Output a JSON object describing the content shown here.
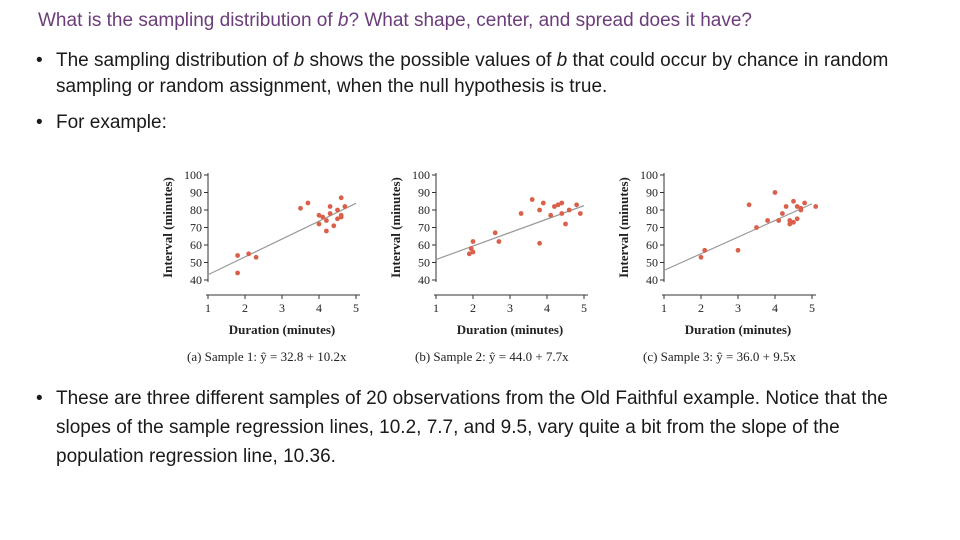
{
  "slide": {
    "title_pre": "What is the sampling distribution of ",
    "title_var": "b",
    "title_post": "?  What shape, center, and spread does it have?",
    "bullet_glyph": "•",
    "bullet1_pre": "The sampling distribution of ",
    "bullet1_var1": "b",
    "bullet1_mid": " shows the possible values of ",
    "bullet1_var2": "b",
    "bullet1_post": " that could occur by chance in random sampling or random assignment, when the null hypothesis is true.",
    "bullet2": "For example:",
    "bullet3": "These are three different samples of 20 observations from the Old Faithful example. Notice that the slopes of the sample regression lines, 10.2, 7.7, and 9.5, vary quite a bit from the slope of the population regression line, 10.36."
  },
  "colors": {
    "title": "#6b3d7a",
    "points": "#d9604a",
    "line": "#9a9a9a"
  },
  "chart_data": [
    {
      "type": "scatter",
      "xlabel": "Duration (minutes)",
      "ylabel": "Interval (minutes)",
      "xlim": [
        1,
        5
      ],
      "ylim": [
        40,
        100
      ],
      "xticks": [
        "1",
        "2",
        "3",
        "4",
        "5"
      ],
      "yticks": [
        "100",
        "90",
        "80",
        "70",
        "60",
        "50",
        "40"
      ],
      "caption": "(a) Sample 1:  ŷ = 32.8 + 10.2x",
      "regression": {
        "intercept": 32.8,
        "slope": 10.2
      },
      "x": [
        1.8,
        2.1,
        2.3,
        1.8,
        3.5,
        3.7,
        4.0,
        4.3,
        4.6,
        4.0,
        4.2,
        4.4,
        4.7,
        4.6,
        4.5,
        4.2,
        4.3,
        4.5,
        4.6,
        4.1
      ],
      "y": [
        54,
        55,
        53,
        44,
        81,
        84,
        77,
        82,
        87,
        72,
        74,
        71,
        82,
        76,
        75,
        68,
        78,
        80,
        77,
        76
      ]
    },
    {
      "type": "scatter",
      "xlabel": "Duration (minutes)",
      "ylabel": "Interval (minutes)",
      "xlim": [
        1,
        5
      ],
      "ylim": [
        40,
        100
      ],
      "xticks": [
        "1",
        "2",
        "3",
        "4",
        "5"
      ],
      "yticks": [
        "100",
        "90",
        "80",
        "70",
        "60",
        "50",
        "40"
      ],
      "caption": "(b) Sample 2:  ŷ = 44.0 + 7.7x",
      "regression": {
        "intercept": 44.0,
        "slope": 7.7
      },
      "x": [
        1.9,
        2.0,
        1.95,
        2.0,
        2.6,
        2.7,
        3.3,
        3.6,
        3.8,
        3.9,
        4.1,
        4.3,
        4.4,
        4.5,
        4.8,
        4.9,
        4.2,
        4.4,
        3.8,
        4.6
      ],
      "y": [
        55,
        56,
        58,
        62,
        67,
        62,
        78,
        86,
        80,
        84,
        77,
        83,
        84,
        72,
        83,
        78,
        82,
        78,
        61,
        80
      ]
    },
    {
      "type": "scatter",
      "xlabel": "Duration (minutes)",
      "ylabel": "Interval (minutes)",
      "xlim": [
        1,
        5
      ],
      "ylim": [
        40,
        100
      ],
      "xticks": [
        "1",
        "2",
        "3",
        "4",
        "5"
      ],
      "yticks": [
        "100",
        "90",
        "80",
        "70",
        "60",
        "50",
        "40"
      ],
      "caption": "(c) Sample 3:  ŷ = 36.0 + 9.5x",
      "regression": {
        "intercept": 36.0,
        "slope": 9.5
      },
      "x": [
        2.0,
        2.1,
        3.0,
        3.3,
        3.5,
        3.8,
        4.0,
        4.1,
        4.2,
        4.3,
        4.4,
        4.5,
        4.6,
        4.7,
        4.8,
        5.1,
        4.5,
        4.6,
        4.4,
        4.7
      ],
      "y": [
        53,
        57,
        57,
        83,
        70,
        74,
        90,
        74,
        78,
        82,
        72,
        85,
        82,
        80,
        84,
        82,
        73,
        75,
        74,
        81
      ]
    }
  ]
}
